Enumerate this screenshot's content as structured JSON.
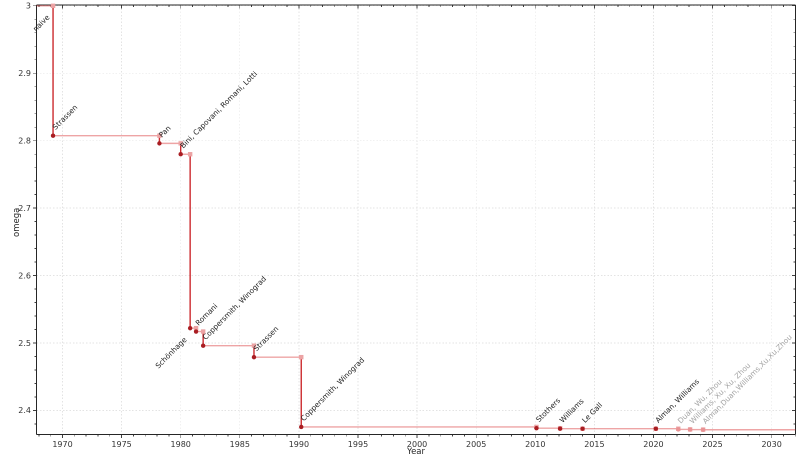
{
  "chart_data": {
    "type": "line",
    "subtype": "step-post",
    "title": "",
    "xlabel": "Year",
    "ylabel": "omega",
    "xlim": [
      1967.8,
      2032.0
    ],
    "ylim": [
      2.3646,
      3.0012
    ],
    "grid": "major-both",
    "legend": null,
    "x_major_ticks": [
      1970,
      1975,
      1980,
      1985,
      1990,
      1995,
      2000,
      2005,
      2010,
      2015,
      2020,
      2025,
      2030
    ],
    "x_minor_step": 1,
    "y_major_ticks": [
      {
        "v": 3.0,
        "label": "3"
      },
      {
        "v": 2.9,
        "label": "2.9"
      },
      {
        "v": 2.8,
        "label": "2.8"
      },
      {
        "v": 2.7,
        "label": "2.7"
      },
      {
        "v": 2.6,
        "label": "2.6"
      },
      {
        "v": 2.5,
        "label": "2.5"
      },
      {
        "v": 2.4,
        "label": "2.4"
      }
    ],
    "y_minor_step": 0.02,
    "colors": {
      "line": "#d62728",
      "line_horizontal": "rgba(214,39,40,0.42)",
      "line_vertical": "rgba(201,32,36,0.95)",
      "marker_dark": "#a91d22",
      "marker_light": "#eca3a4",
      "marker_faded": "#e99395",
      "label": "#1f1f1f",
      "label_faded": "#a3a3a3",
      "grid": "#e3e3e3",
      "axis": "#262626",
      "tick": "#404040",
      "tick_label": "#333333"
    },
    "points": [
      {
        "label": "naive",
        "year": 1969.2,
        "omega": 3.0,
        "style": "start",
        "side": "below"
      },
      {
        "label": "Strassen",
        "year": 1969.2,
        "omega": 2.8074,
        "style": "solid",
        "side": "above"
      },
      {
        "label": "Pan",
        "year": 1978.2,
        "omega": 2.796,
        "style": "solid",
        "side": "above"
      },
      {
        "label": "Bini, Capovani, Romani, Lotti",
        "year": 1980.0,
        "omega": 2.7799,
        "style": "solid",
        "side": "above"
      },
      {
        "label": "Schönhage",
        "year": 1980.8,
        "omega": 2.522,
        "style": "solid",
        "side": "below"
      },
      {
        "label": "Romani",
        "year": 1981.3,
        "omega": 2.517,
        "style": "solid",
        "side": "above"
      },
      {
        "label": "Coppersmith, Winograd",
        "year": 1981.9,
        "omega": 2.496,
        "style": "solid",
        "side": "above"
      },
      {
        "label": "Strassen",
        "year": 1986.2,
        "omega": 2.479,
        "style": "solid",
        "side": "above"
      },
      {
        "label": "Coppersmith, Winograd",
        "year": 1990.2,
        "omega": 2.3755,
        "style": "solid",
        "side": "above"
      },
      {
        "label": "Stothers",
        "year": 2010.1,
        "omega": 2.3737,
        "style": "solid",
        "side": "above"
      },
      {
        "label": "Williams",
        "year": 2012.1,
        "omega": 2.3729,
        "style": "solid",
        "side": "above"
      },
      {
        "label": "Le Gall",
        "year": 2014.0,
        "omega": 2.3728639,
        "style": "solid",
        "side": "above"
      },
      {
        "label": "Alman, Williams",
        "year": 2020.2,
        "omega": 2.3728596,
        "style": "solid",
        "side": "above"
      },
      {
        "label": "Duan, Wu, Zhou",
        "year": 2022.1,
        "omega": 2.371866,
        "style": "faded",
        "side": "above"
      },
      {
        "label": "Williams, Xu, Xu, Zhou",
        "year": 2023.1,
        "omega": 2.371552,
        "style": "faded",
        "side": "above"
      },
      {
        "label": "Alman,Duan,Williams,Xu,Xu,Zhou",
        "year": 2024.2,
        "omega": 2.371339,
        "style": "faded",
        "side": "above"
      }
    ]
  }
}
